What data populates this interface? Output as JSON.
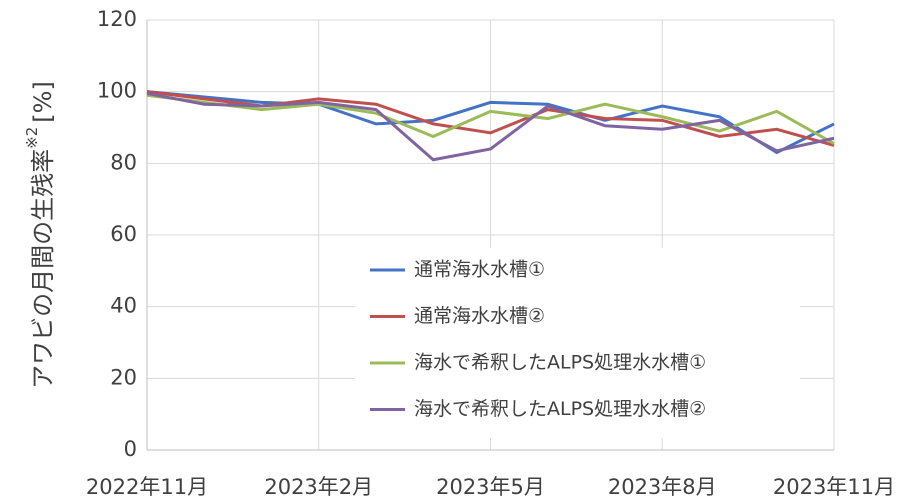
{
  "chart_data": {
    "type": "line",
    "ylabel": "アワビの月間の生残率",
    "ylabel_note": "※2",
    "ylabel_unit": "[%]",
    "categories": [
      "2022年11月",
      null,
      null,
      "2023年2月",
      null,
      null,
      "2023年5月",
      null,
      null,
      "2023年8月",
      null,
      null,
      "2023年11月"
    ],
    "series": [
      {
        "name": "通常海水水槽①",
        "color": "#4472c4",
        "values": [
          100,
          98.5,
          97,
          96.5,
          91,
          92,
          97,
          96.5,
          92,
          96,
          93,
          83,
          91
        ]
      },
      {
        "name": "通常海水水槽②",
        "color": "#c0504d",
        "values": [
          100,
          98,
          96,
          98,
          96.5,
          91,
          88.5,
          95,
          92.5,
          92,
          87.5,
          89.5,
          85
        ]
      },
      {
        "name": "海水で希釈したALPS処理水水槽①",
        "color": "#9bbb59",
        "values": [
          99,
          97,
          95,
          96.5,
          94,
          87.5,
          94.5,
          92.5,
          96.5,
          93,
          89,
          94.5,
          85.5
        ]
      },
      {
        "name": "海水で希釈したALPS処理水水槽②",
        "color": "#8064a2",
        "values": [
          99.5,
          96.5,
          96,
          97,
          95,
          81,
          84,
          96,
          90.5,
          89.5,
          92,
          83.5,
          87
        ]
      }
    ],
    "ylim": [
      0,
      120
    ],
    "yticks": [
      0,
      20,
      40,
      60,
      80,
      100,
      120
    ],
    "grid": true
  }
}
